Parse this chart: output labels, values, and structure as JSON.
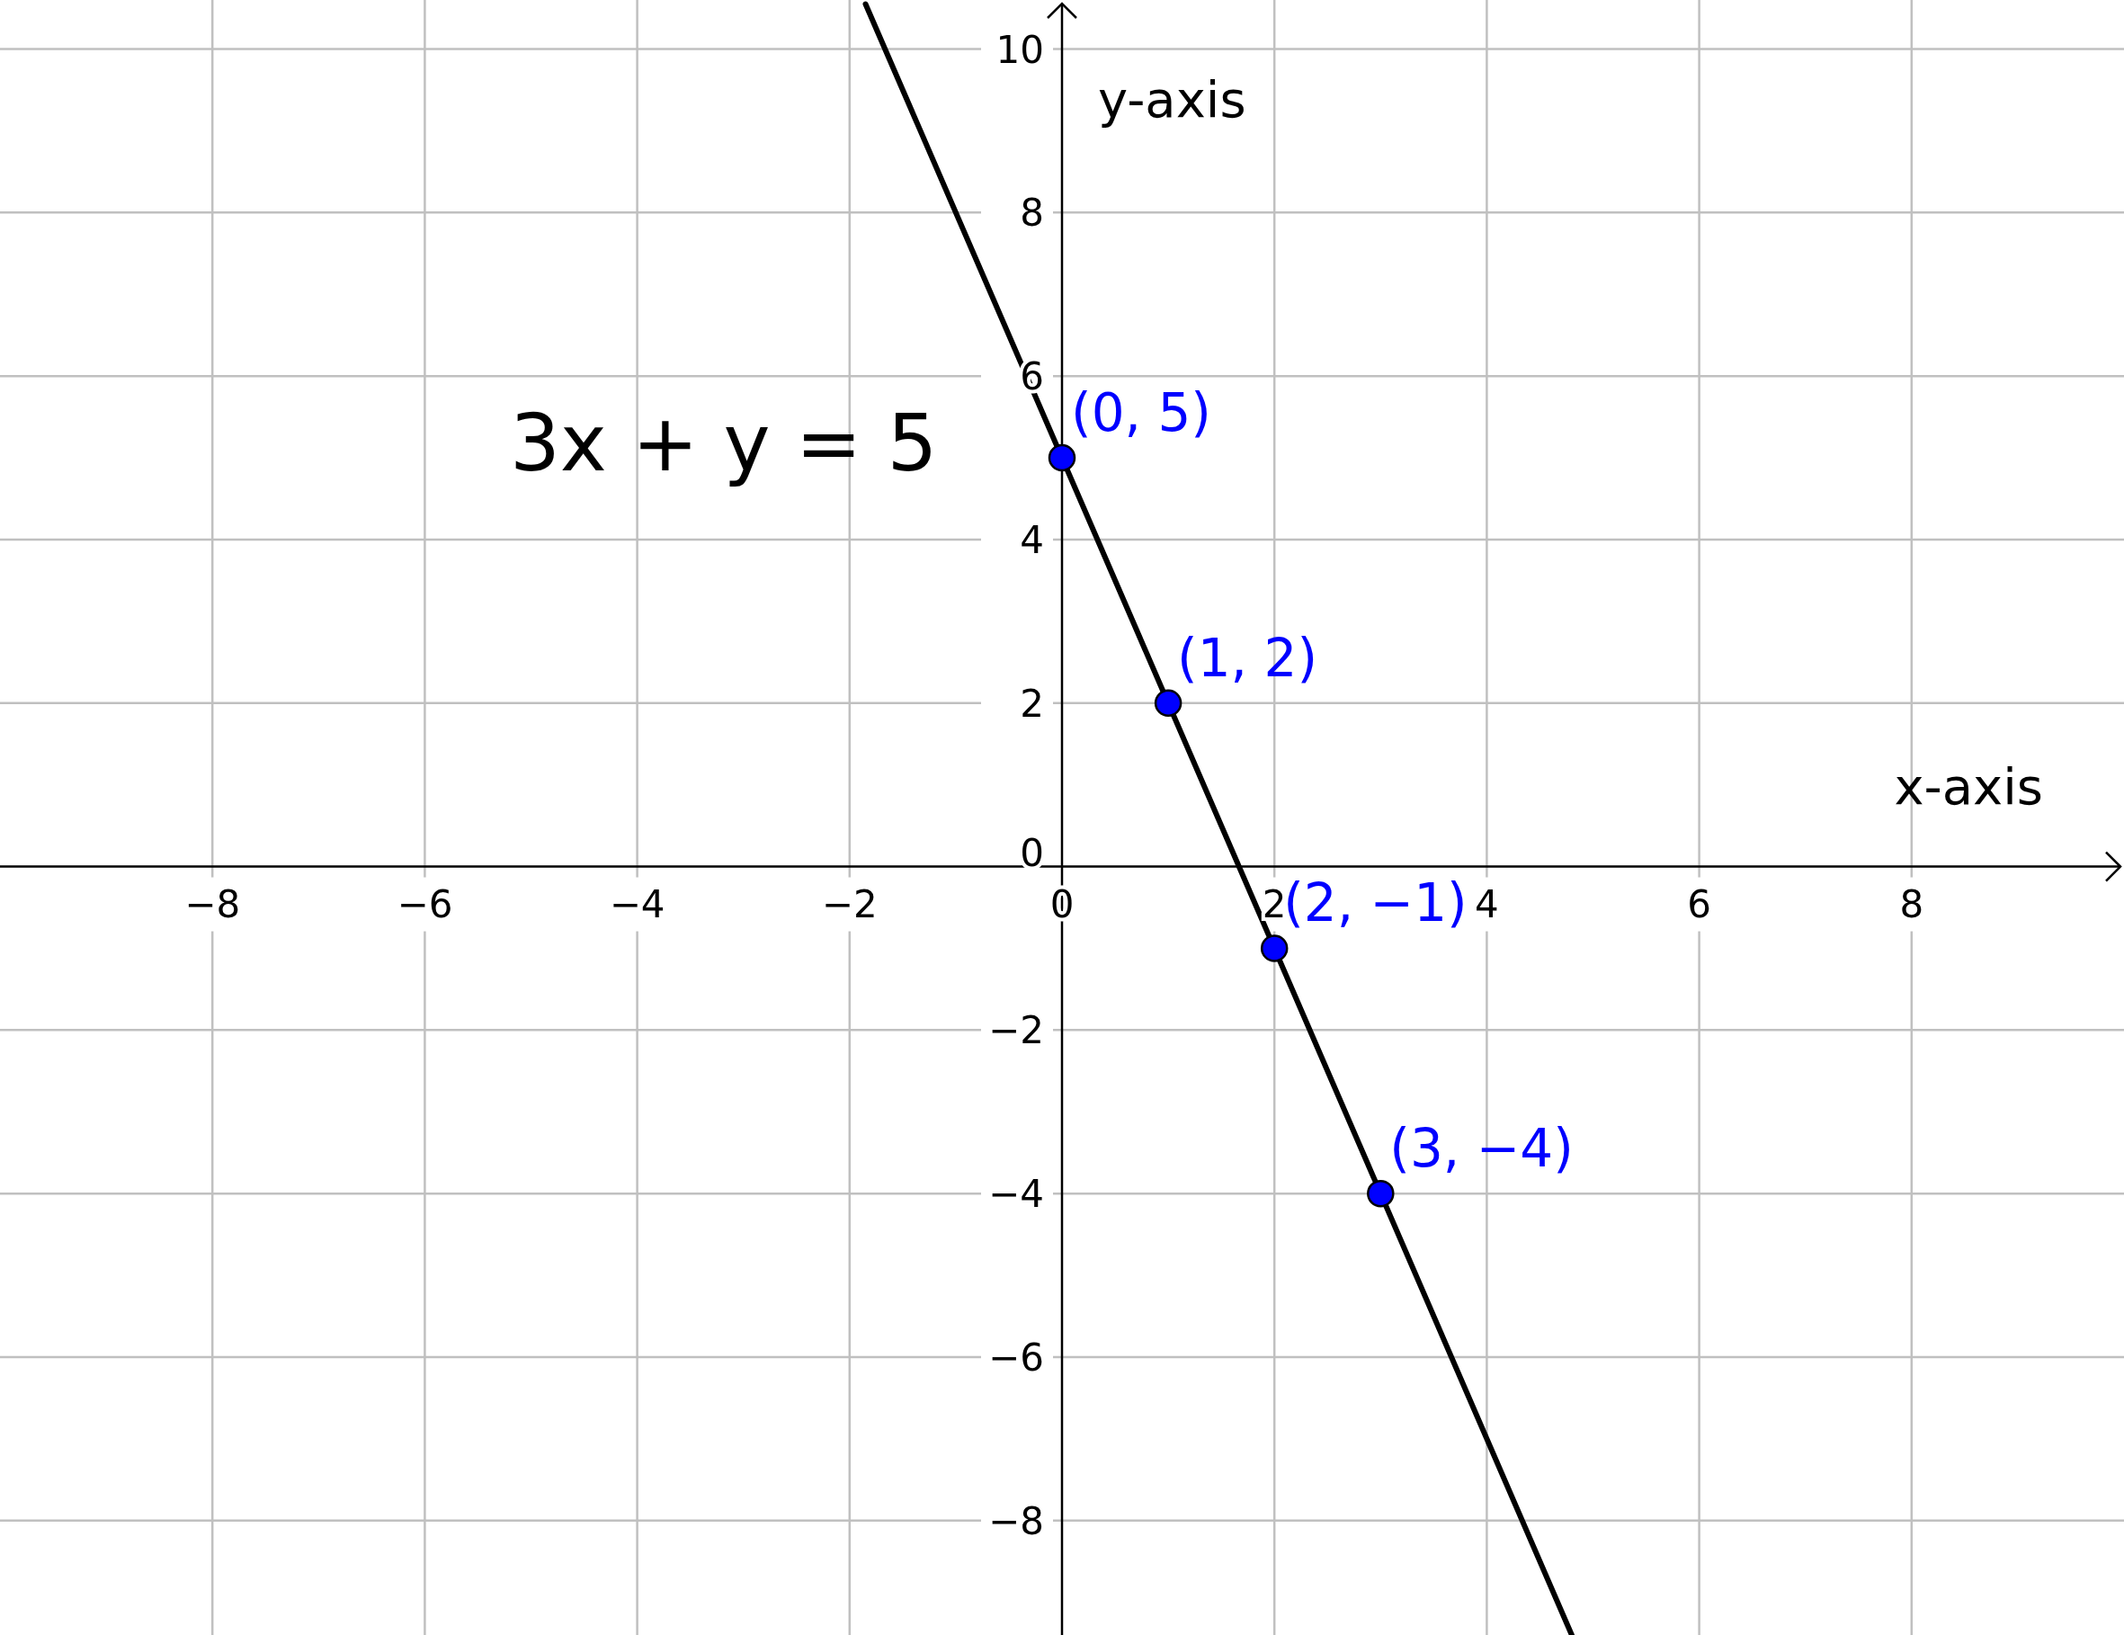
{
  "chart_data": {
    "type": "line",
    "xlabel": "x-axis",
    "ylabel": "y-axis",
    "xlim": [
      -10,
      10
    ],
    "ylim": [
      -9.4,
      10.6
    ],
    "xticks": [
      {
        "value": -8,
        "label": "−8"
      },
      {
        "value": -6,
        "label": "−6"
      },
      {
        "value": -4,
        "label": "−4"
      },
      {
        "value": -2,
        "label": "−2"
      },
      0,
      2,
      4,
      6,
      8
    ],
    "yticks": [
      {
        "value": -8,
        "label": "−8"
      },
      {
        "value": -6,
        "label": "−6"
      },
      {
        "value": -4,
        "label": "−4"
      },
      {
        "value": -2,
        "label": "−2"
      },
      0,
      2,
      4,
      6,
      8,
      10
    ],
    "grid": true,
    "series": [
      {
        "color": "#000000",
        "x": [
          -1.85,
          4.8
        ],
        "values": [
          10.55,
          -9.4
        ]
      },
      {
        "type": "scatter",
        "color": "#0000ff",
        "x": [
          0,
          1,
          2,
          3
        ],
        "values": [
          5,
          2,
          -1,
          -4
        ],
        "marker": "circle"
      }
    ],
    "annotations": [
      "3x + y = 5",
      {
        "text": "(0, 5)",
        "x": 0,
        "y": 5
      },
      {
        "text": "(1, 2)",
        "x": 1,
        "y": 2
      },
      {
        "text": "(2, −1)",
        "x": 2,
        "y": -1
      },
      {
        "text": "(3, −4)",
        "x": 3,
        "y": -4
      }
    ]
  }
}
